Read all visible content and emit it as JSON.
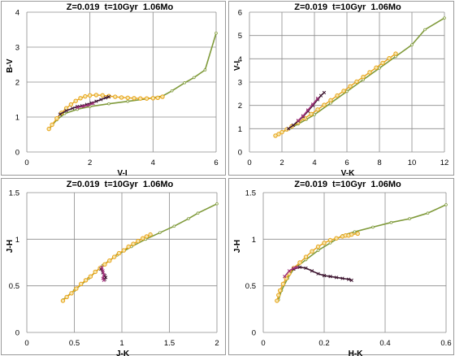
{
  "chart_data": [
    {
      "type": "line",
      "title": "Z=0.019  t=10Gyr  1.06Mo",
      "xlabel": "V-I",
      "ylabel": "B-V",
      "xlim": [
        0,
        6
      ],
      "ylim": [
        0,
        4
      ],
      "x_ticks": [
        0,
        2,
        4,
        6
      ],
      "y_ticks": [
        0,
        1,
        2,
        3,
        4
      ],
      "grid": true,
      "series": [
        {
          "color": "#7f9a3a",
          "markers": "dot",
          "points": [
            [
              0.72,
              0.68
            ],
            [
              0.95,
              0.92
            ],
            [
              1.2,
              1.1
            ],
            [
              1.6,
              1.22
            ],
            [
              2.0,
              1.3
            ],
            [
              2.6,
              1.38
            ],
            [
              3.2,
              1.45
            ],
            [
              3.8,
              1.52
            ],
            [
              4.3,
              1.6
            ],
            [
              4.6,
              1.75
            ],
            [
              5.0,
              1.98
            ],
            [
              5.3,
              2.13
            ],
            [
              5.65,
              2.35
            ],
            [
              6.0,
              3.4
            ]
          ]
        },
        {
          "color": "#e8a317",
          "markers": "circle",
          "points": [
            [
              0.7,
              0.66
            ],
            [
              0.8,
              0.78
            ],
            [
              0.95,
              0.96
            ],
            [
              1.1,
              1.12
            ],
            [
              1.25,
              1.25
            ],
            [
              1.4,
              1.36
            ],
            [
              1.55,
              1.46
            ],
            [
              1.7,
              1.54
            ],
            [
              1.85,
              1.59
            ],
            [
              2.0,
              1.62
            ],
            [
              2.2,
              1.63
            ],
            [
              2.4,
              1.62
            ],
            [
              2.6,
              1.6
            ],
            [
              2.8,
              1.58
            ],
            [
              3.0,
              1.56
            ],
            [
              3.2,
              1.55
            ],
            [
              3.4,
              1.54
            ],
            [
              3.6,
              1.53
            ],
            [
              3.8,
              1.53
            ],
            [
              4.0,
              1.54
            ],
            [
              4.15,
              1.55
            ],
            [
              4.3,
              1.58
            ]
          ]
        },
        {
          "color": "#3d1530",
          "markers": "cross",
          "points": [
            [
              1.05,
              1.08
            ],
            [
              1.25,
              1.18
            ],
            [
              1.45,
              1.25
            ],
            [
              1.6,
              1.3
            ],
            [
              1.75,
              1.32
            ],
            [
              1.9,
              1.36
            ],
            [
              2.05,
              1.4
            ],
            [
              2.2,
              1.45
            ],
            [
              2.35,
              1.5
            ],
            [
              2.5,
              1.55
            ],
            [
              2.6,
              1.58
            ]
          ]
        },
        {
          "color": "#a0307a",
          "markers": "cross",
          "points": [
            [
              1.6,
              1.27
            ],
            [
              1.8,
              1.31
            ],
            [
              1.95,
              1.34
            ],
            [
              2.1,
              1.39
            ]
          ]
        }
      ]
    },
    {
      "type": "line",
      "title": "Z=0.019  t=10Gyr  1.06Mo",
      "xlabel": "V-K",
      "ylabel": "V-I",
      "xlim": [
        0,
        12
      ],
      "ylim": [
        0,
        6
      ],
      "x_ticks": [
        0,
        2,
        4,
        6,
        8,
        10,
        12
      ],
      "y_ticks": [
        0,
        1,
        2,
        3,
        4,
        5,
        6
      ],
      "grid": true,
      "series": [
        {
          "color": "#7f9a3a",
          "markers": "dot",
          "points": [
            [
              1.6,
              0.72
            ],
            [
              2.0,
              0.85
            ],
            [
              2.5,
              1.02
            ],
            [
              3.0,
              1.2
            ],
            [
              3.5,
              1.4
            ],
            [
              4.0,
              1.6
            ],
            [
              5.0,
              2.1
            ],
            [
              6.0,
              2.6
            ],
            [
              7.0,
              3.1
            ],
            [
              8.0,
              3.6
            ],
            [
              9.0,
              4.1
            ],
            [
              10.0,
              4.6
            ],
            [
              10.8,
              5.25
            ],
            [
              12.0,
              5.75
            ]
          ]
        },
        {
          "color": "#e8a317",
          "markers": "circle",
          "points": [
            [
              1.6,
              0.7
            ],
            [
              1.8,
              0.77
            ],
            [
              2.0,
              0.85
            ],
            [
              2.3,
              0.97
            ],
            [
              2.6,
              1.1
            ],
            [
              3.0,
              1.27
            ],
            [
              3.4,
              1.45
            ],
            [
              3.8,
              1.63
            ],
            [
              4.2,
              1.82
            ],
            [
              4.6,
              2.02
            ],
            [
              5.0,
              2.22
            ],
            [
              5.4,
              2.42
            ],
            [
              5.8,
              2.62
            ],
            [
              6.2,
              2.82
            ],
            [
              6.6,
              3.02
            ],
            [
              7.0,
              3.22
            ],
            [
              7.4,
              3.42
            ],
            [
              7.8,
              3.62
            ],
            [
              8.2,
              3.82
            ],
            [
              8.6,
              4.02
            ],
            [
              9.0,
              4.22
            ]
          ]
        },
        {
          "color": "#3d1530",
          "markers": "cross",
          "points": [
            [
              2.4,
              1.0
            ],
            [
              2.7,
              1.15
            ],
            [
              3.0,
              1.33
            ],
            [
              3.3,
              1.52
            ],
            [
              3.6,
              1.75
            ],
            [
              3.9,
              2.0
            ],
            [
              4.2,
              2.25
            ],
            [
              4.4,
              2.42
            ],
            [
              4.6,
              2.55
            ]
          ]
        },
        {
          "color": "#a0307a",
          "markers": "cross",
          "points": [
            [
              3.0,
              1.35
            ],
            [
              3.3,
              1.55
            ],
            [
              3.6,
              1.8
            ],
            [
              3.9,
              2.05
            ],
            [
              4.2,
              2.3
            ]
          ]
        }
      ]
    },
    {
      "type": "line",
      "title": "Z=0.019  t=10Gyr  1.06Mo",
      "xlabel": "J-K",
      "ylabel": "J-H",
      "xlim": [
        0,
        2
      ],
      "ylim": [
        0,
        1.5
      ],
      "x_ticks": [
        0,
        0.5,
        1,
        1.5,
        2
      ],
      "y_ticks": [
        0,
        0.5,
        1,
        1.5
      ],
      "grid": true,
      "series": [
        {
          "color": "#7f9a3a",
          "markers": "dot",
          "points": [
            [
              0.38,
              0.35
            ],
            [
              0.5,
              0.45
            ],
            [
              0.65,
              0.58
            ],
            [
              0.8,
              0.72
            ],
            [
              0.95,
              0.83
            ],
            [
              1.1,
              0.92
            ],
            [
              1.25,
              1.0
            ],
            [
              1.4,
              1.07
            ],
            [
              1.55,
              1.14
            ],
            [
              1.7,
              1.22
            ],
            [
              1.8,
              1.28
            ],
            [
              2.0,
              1.38
            ]
          ]
        },
        {
          "color": "#e8a317",
          "markers": "circle",
          "points": [
            [
              0.38,
              0.34
            ],
            [
              0.42,
              0.38
            ],
            [
              0.47,
              0.42
            ],
            [
              0.52,
              0.47
            ],
            [
              0.57,
              0.52
            ],
            [
              0.62,
              0.56
            ],
            [
              0.67,
              0.6
            ],
            [
              0.72,
              0.65
            ],
            [
              0.77,
              0.69
            ],
            [
              0.82,
              0.73
            ],
            [
              0.87,
              0.77
            ],
            [
              0.92,
              0.81
            ],
            [
              0.97,
              0.85
            ],
            [
              1.02,
              0.88
            ],
            [
              1.07,
              0.92
            ],
            [
              1.12,
              0.95
            ],
            [
              1.17,
              0.98
            ],
            [
              1.22,
              1.01
            ],
            [
              1.26,
              1.03
            ],
            [
              1.3,
              1.05
            ]
          ]
        },
        {
          "color": "#3d1530",
          "markers": "cross",
          "points": [
            [
              0.78,
              0.68
            ],
            [
              0.8,
              0.64
            ],
            [
              0.82,
              0.61
            ],
            [
              0.83,
              0.59
            ],
            [
              0.82,
              0.57
            ]
          ]
        },
        {
          "color": "#a0307a",
          "markers": "cross",
          "points": [
            [
              0.79,
              0.7
            ],
            [
              0.8,
              0.66
            ],
            [
              0.81,
              0.62
            ],
            [
              0.8,
              0.58
            ],
            [
              0.81,
              0.56
            ]
          ]
        }
      ]
    },
    {
      "type": "line",
      "title": "Z=0.019  t=10Gyr  1.06Mo",
      "xlabel": "H-K",
      "ylabel": "J-H",
      "xlim": [
        0,
        0.6
      ],
      "ylim": [
        0,
        1.5
      ],
      "x_ticks": [
        0,
        0.2,
        0.4,
        0.6
      ],
      "y_ticks": [
        0,
        0.5,
        1,
        1.5
      ],
      "grid": true,
      "series": [
        {
          "color": "#7f9a3a",
          "markers": "dot",
          "points": [
            [
              0.05,
              0.35
            ],
            [
              0.06,
              0.45
            ],
            [
              0.08,
              0.58
            ],
            [
              0.1,
              0.68
            ],
            [
              0.14,
              0.78
            ],
            [
              0.18,
              0.88
            ],
            [
              0.22,
              0.96
            ],
            [
              0.26,
              1.04
            ],
            [
              0.3,
              1.08
            ],
            [
              0.36,
              1.13
            ],
            [
              0.42,
              1.18
            ],
            [
              0.48,
              1.22
            ],
            [
              0.54,
              1.28
            ],
            [
              0.6,
              1.37
            ]
          ]
        },
        {
          "color": "#e8a317",
          "markers": "circle",
          "points": [
            [
              0.045,
              0.34
            ],
            [
              0.05,
              0.4
            ],
            [
              0.055,
              0.45
            ],
            [
              0.065,
              0.52
            ],
            [
              0.075,
              0.58
            ],
            [
              0.085,
              0.63
            ],
            [
              0.1,
              0.69
            ],
            [
              0.12,
              0.75
            ],
            [
              0.14,
              0.81
            ],
            [
              0.16,
              0.87
            ],
            [
              0.18,
              0.92
            ],
            [
              0.2,
              0.96
            ],
            [
              0.22,
              0.99
            ],
            [
              0.24,
              1.01
            ],
            [
              0.26,
              1.03
            ],
            [
              0.27,
              1.04
            ],
            [
              0.28,
              1.04
            ],
            [
              0.29,
              1.05
            ],
            [
              0.31,
              1.06
            ]
          ]
        },
        {
          "color": "#3d1530",
          "markers": "cross",
          "points": [
            [
              0.1,
              0.68
            ],
            [
              0.12,
              0.7
            ],
            [
              0.14,
              0.69
            ],
            [
              0.16,
              0.66
            ],
            [
              0.18,
              0.63
            ],
            [
              0.2,
              0.61
            ],
            [
              0.22,
              0.6
            ],
            [
              0.24,
              0.59
            ],
            [
              0.26,
              0.58
            ],
            [
              0.28,
              0.57
            ],
            [
              0.29,
              0.56
            ]
          ]
        },
        {
          "color": "#a0307a",
          "markers": "cross",
          "points": [
            [
              0.07,
              0.6
            ],
            [
              0.085,
              0.66
            ],
            [
              0.1,
              0.69
            ],
            [
              0.11,
              0.7
            ]
          ]
        }
      ]
    }
  ]
}
